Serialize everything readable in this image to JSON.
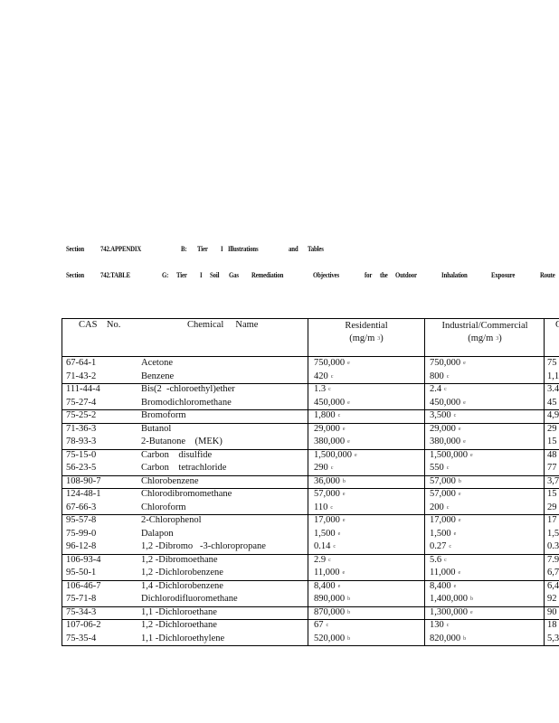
{
  "header": {
    "line1": [
      "Section",
      "742.APPENDIX",
      "B:",
      "Tier",
      "I",
      "Illustrations",
      "and",
      "Tables"
    ],
    "line2": [
      "Section",
      "742.TABLE",
      "G:",
      "Tier",
      "I",
      "Soil",
      "Gas",
      "Remediation",
      "Objectives",
      "for",
      "the",
      "Outdoor",
      "Inhalation",
      "Exposure",
      "Route"
    ]
  },
  "table": {
    "columns": {
      "cas": "CAS    No.",
      "name": "Chemical     Name",
      "residential": "Residential",
      "residential_unit": "(mg/m",
      "industrial": "Industrial/Commercial",
      "industrial_unit": "(mg/m",
      "unit_sup": "3",
      "last": "C"
    },
    "groups": [
      [
        [
          "67-64-1",
          "Acetone",
          "750,000",
          "e",
          "750,000",
          "e",
          "75"
        ],
        [
          "71-43-2",
          "Benzene",
          "420",
          "c",
          "800",
          "c",
          "1,1"
        ]
      ],
      [
        [
          "111-44-4",
          "Bis(2  -chloroethyl)ether",
          "1.3",
          "c",
          "2.4",
          "c",
          "3.4"
        ],
        [
          "75-27-4",
          "Bromodichloromethane",
          "450,000",
          "e",
          "450,000",
          "e",
          "45"
        ]
      ],
      [
        [
          "75-25-2",
          "Bromoform",
          "1,800",
          "c",
          "3,500",
          "c",
          "4,9"
        ]
      ],
      [
        [
          "71-36-3",
          "Butanol",
          "29,000",
          "e",
          "29,000",
          "e",
          "29"
        ],
        [
          "78-93-3",
          "2-Butanone    (MEK)",
          "380,000",
          "e",
          "380,000",
          "e",
          "15"
        ]
      ],
      [
        [
          "75-15-0",
          "Carbon    disulfide",
          "1,500,000",
          "e",
          "1,500,000",
          "e",
          "48"
        ],
        [
          "56-23-5",
          "Carbon    tetrachloride",
          "290",
          "c",
          "550",
          "c",
          "77"
        ]
      ],
      [
        [
          "108-90-7",
          "Chlorobenzene",
          "36,000",
          "b",
          "57,000",
          "b",
          "3,7"
        ]
      ],
      [
        [
          "124-48-1",
          "Chlorodibromomethane",
          "57,000",
          "e",
          "57,000",
          "e",
          "15"
        ],
        [
          "67-66-3",
          "Chloroform",
          "110",
          "c",
          "200",
          "c",
          "29"
        ]
      ],
      [
        [
          "95-57-8",
          "2-Chlorophenol",
          "17,000",
          "e",
          "17,000",
          "e",
          "17"
        ],
        [
          "75-99-0",
          "Dalapon",
          "1,500",
          "e",
          "1,500",
          "e",
          "1,5"
        ],
        [
          "96-12-8",
          "1,2 -Dibromo   -3-chloropropane",
          "0.14",
          "c",
          "0.27",
          "c",
          "0.3"
        ]
      ],
      [
        [
          "106-93-4",
          "1,2 -Dibromoethane",
          "2.9",
          "c",
          "5.6",
          "c",
          "7.9"
        ],
        [
          "95-50-1",
          "1,2 -Dichlorobenzene",
          "11,000",
          "e",
          "11,000",
          "e",
          "6,7"
        ]
      ],
      [
        [
          "106-46-7",
          "1,4 -Dichlorobenzene",
          "8,400",
          "e",
          "8,400",
          "e",
          "6,4"
        ],
        [
          "75-71-8",
          "Dichlorodifluoromethane",
          "890,000",
          "b",
          "1,400,000",
          "b",
          "92"
        ]
      ],
      [
        [
          "75-34-3",
          "1,1 -Dichloroethane",
          "870,000",
          "b",
          "1,300,000",
          "e",
          "90"
        ]
      ],
      [
        [
          "107-06-2",
          "1,2 -Dichloroethane",
          "67",
          "c",
          "130",
          "c",
          "18"
        ],
        [
          "75-35-4",
          "1,1 -Dichloroethylene",
          "520,000",
          "b",
          "820,000",
          "b",
          "5,3"
        ]
      ]
    ]
  }
}
